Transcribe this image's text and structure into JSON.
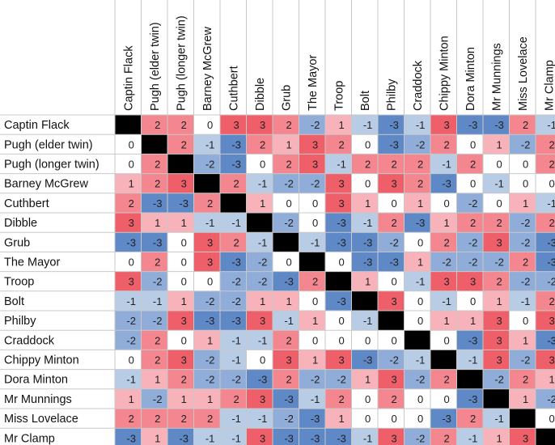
{
  "chart_data": {
    "type": "heatmap",
    "title": "",
    "rows": [
      "Captin Flack",
      "Pugh (elder twin)",
      "Pugh (longer twin)",
      "Barney McGrew",
      "Cuthbert",
      "Dibble",
      "Grub",
      "The Mayor",
      "Troop",
      "Bolt",
      "Philby",
      "Craddock",
      "Chippy Minton",
      "Dora Minton",
      "Mr Munnings",
      "Miss Lovelace",
      "Mr Clamp"
    ],
    "columns": [
      "Captin Flack",
      "Pugh (elder twin)",
      "Pugh (longer twin)",
      "Barney McGrew",
      "Cuthbert",
      "Dibble",
      "Grub",
      "The Mayor",
      "Troop",
      "Bolt",
      "Philby",
      "Craddock",
      "Chippy Minton",
      "Dora Minton",
      "Mr Munnings",
      "Miss Lovelace",
      "Mr Clamp"
    ],
    "diagonal": "blank",
    "values": [
      [
        null,
        2,
        2,
        0,
        3,
        3,
        2,
        -2,
        1,
        -1,
        -3,
        -1,
        3,
        -3,
        -3,
        2,
        -1
      ],
      [
        0,
        null,
        2,
        -1,
        -3,
        2,
        1,
        3,
        2,
        0,
        -3,
        -2,
        2,
        0,
        1,
        -2,
        2
      ],
      [
        0,
        2,
        null,
        -2,
        -3,
        0,
        2,
        3,
        -1,
        2,
        2,
        2,
        -1,
        2,
        0,
        0,
        2
      ],
      [
        1,
        2,
        3,
        null,
        2,
        -1,
        -2,
        -2,
        3,
        0,
        3,
        2,
        -3,
        0,
        -1,
        0,
        0
      ],
      [
        2,
        -3,
        -3,
        2,
        null,
        1,
        0,
        0,
        3,
        1,
        0,
        1,
        0,
        -2,
        0,
        1,
        -1
      ],
      [
        3,
        1,
        1,
        -1,
        -1,
        null,
        -2,
        0,
        -3,
        -1,
        2,
        -3,
        1,
        2,
        2,
        -2,
        2
      ],
      [
        -3,
        -3,
        0,
        3,
        2,
        -1,
        null,
        -1,
        -3,
        -3,
        -2,
        0,
        2,
        -2,
        3,
        -2,
        -3
      ],
      [
        0,
        2,
        0,
        3,
        -3,
        -2,
        0,
        null,
        0,
        -3,
        -3,
        1,
        -2,
        -2,
        -2,
        2,
        -3
      ],
      [
        3,
        -2,
        0,
        0,
        -2,
        -2,
        -3,
        2,
        null,
        1,
        0,
        -1,
        3,
        3,
        2,
        -2,
        -2
      ],
      [
        -1,
        -1,
        1,
        -2,
        -2,
        1,
        1,
        0,
        -3,
        null,
        3,
        0,
        -1,
        0,
        1,
        -1,
        2
      ],
      [
        -2,
        -2,
        3,
        -3,
        -3,
        3,
        -1,
        1,
        0,
        -1,
        null,
        0,
        1,
        1,
        3,
        0,
        3
      ],
      [
        -2,
        2,
        0,
        1,
        -1,
        -1,
        2,
        0,
        0,
        0,
        0,
        null,
        0,
        -3,
        3,
        1,
        -3
      ],
      [
        0,
        2,
        3,
        -2,
        -1,
        0,
        3,
        1,
        3,
        -3,
        -2,
        -1,
        null,
        -1,
        3,
        -2,
        3
      ],
      [
        -1,
        1,
        2,
        -2,
        -2,
        -3,
        2,
        -2,
        -2,
        1,
        3,
        -2,
        2,
        null,
        -2,
        2,
        1
      ],
      [
        1,
        -2,
        1,
        1,
        2,
        3,
        -3,
        -1,
        2,
        0,
        2,
        0,
        0,
        -3,
        null,
        1,
        -2
      ],
      [
        2,
        2,
        2,
        2,
        -1,
        -1,
        -2,
        -3,
        1,
        0,
        0,
        0,
        -3,
        2,
        -1,
        null,
        0
      ],
      [
        -3,
        1,
        -3,
        -1,
        -1,
        3,
        -3,
        -3,
        -3,
        -1,
        3,
        -2,
        2,
        -1,
        1,
        3,
        null
      ]
    ],
    "color_scale": {
      "min": -3,
      "max": 3,
      "negative": [
        "#e0e9f5",
        "#b9cce6",
        "#8fadd8",
        "#5f88c6"
      ],
      "zero": "#ffffff",
      "positive": [
        "#fbe0e3",
        "#f7b2ba",
        "#f3868f",
        "#ef5f6a"
      ],
      "diagonal": "#000000",
      "grid": "#c8c8c8"
    }
  }
}
